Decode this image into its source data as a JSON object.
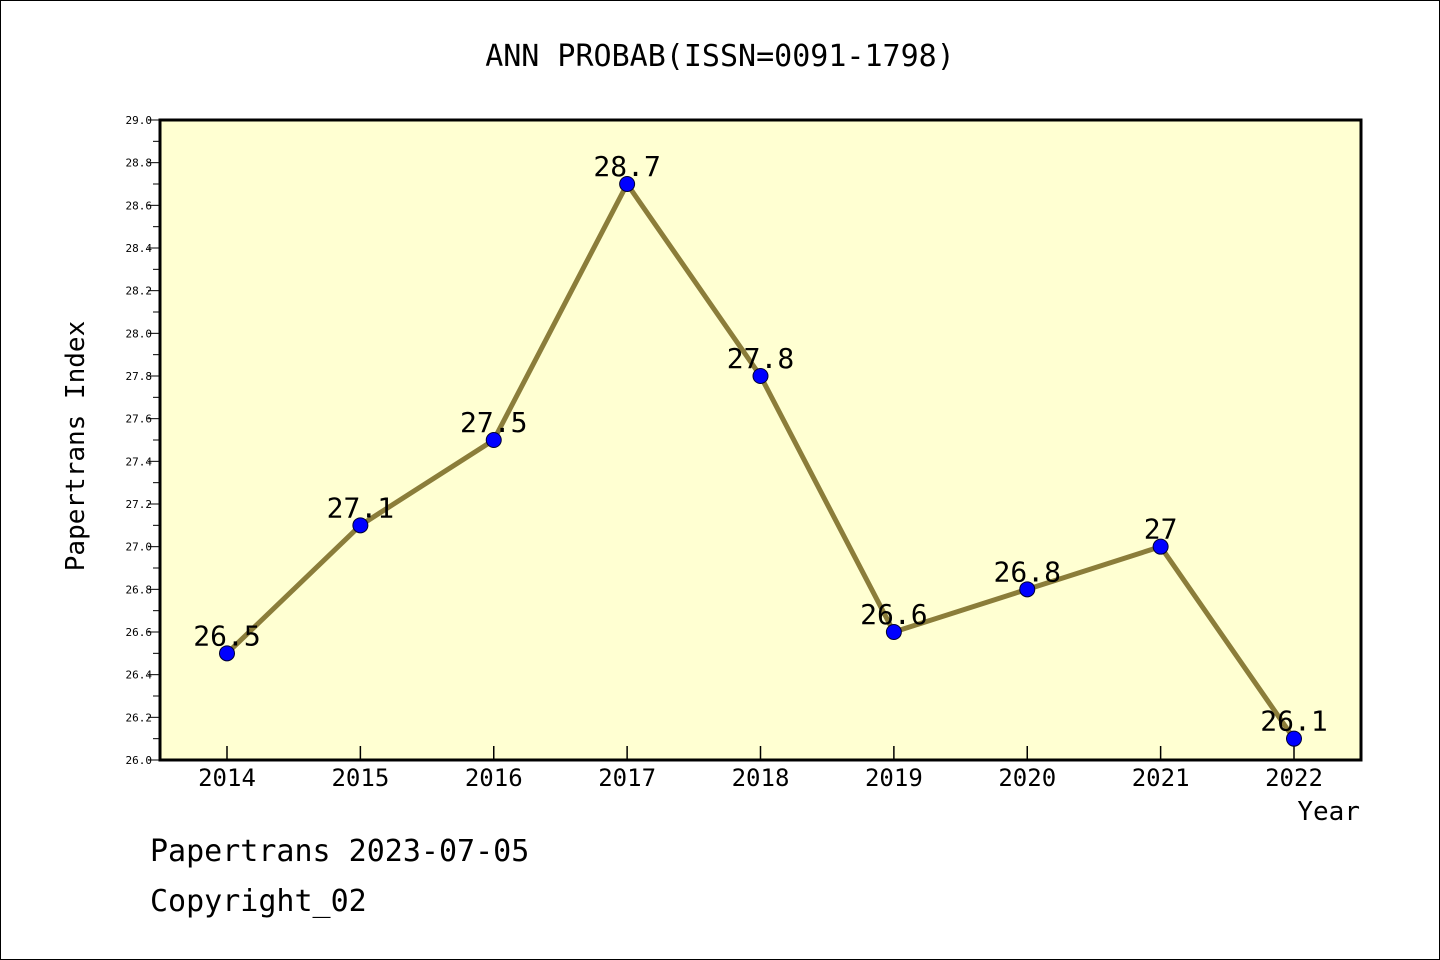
{
  "chart_data": {
    "type": "line",
    "title": "ANN PROBAB(ISSN=0091-1798)",
    "xlabel": "Year",
    "ylabel": "Papertrans Index",
    "categories": [
      "2014",
      "2015",
      "2016",
      "2017",
      "2018",
      "2019",
      "2020",
      "2021",
      "2022"
    ],
    "series": [
      {
        "values": [
          26.5,
          27.1,
          27.5,
          28.7,
          27.8,
          26.6,
          26.8,
          27.0,
          26.1
        ],
        "data_labels": [
          "26.5",
          "27.1",
          "27.5",
          "28.7",
          "27.8",
          "26.6",
          "26.8",
          "27",
          "26.1"
        ]
      }
    ],
    "ylim": [
      26.0,
      29.0
    ],
    "yticks": [
      "26.0",
      "26.2",
      "26.4",
      "26.6",
      "26.8",
      "27.0",
      "27.2",
      "27.4",
      "27.6",
      "27.8",
      "28.0",
      "28.2",
      "28.4",
      "28.6",
      "28.8",
      "29.0"
    ],
    "grid": false,
    "legend": "none",
    "colors": {
      "plot_background": "#ffffd2",
      "line": "#8b7d3a",
      "marker": "#0000ff",
      "axis": "#000000"
    }
  },
  "footer": {
    "stamp": "Papertrans 2023-07-05",
    "copyright": "Copyright_02"
  }
}
